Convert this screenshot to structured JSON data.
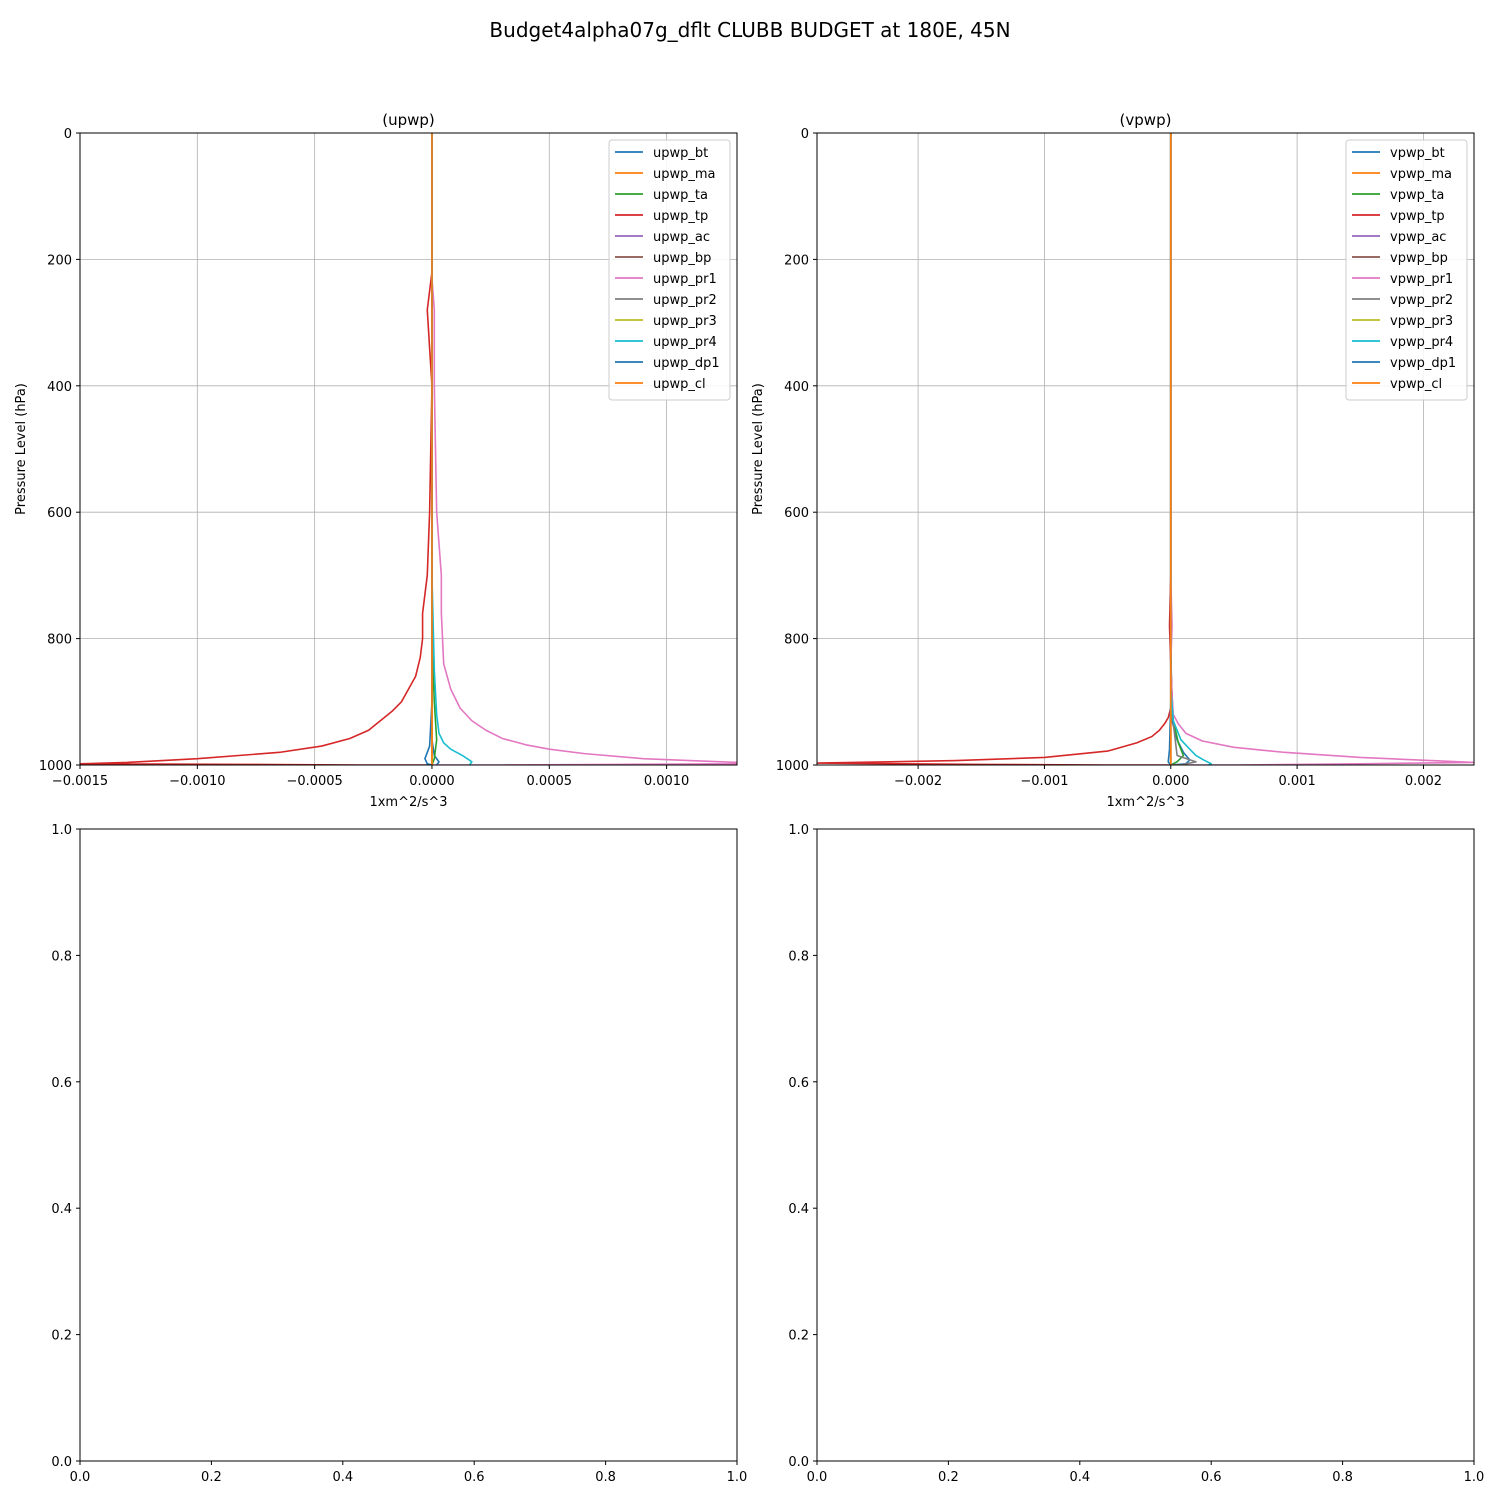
{
  "suptitle": "Budget4alpha07g_dflt CLUBB BUDGET at 180E, 45N",
  "chart_data": [
    {
      "type": "line",
      "title": "(upwp)",
      "xlabel": "1xm^2/s^3",
      "ylabel": "Pressure Level (hPa)",
      "xlim": [
        -0.0015,
        0.0013
      ],
      "ylim": [
        1000,
        0
      ],
      "grid": true,
      "legend": "top-right",
      "xticks": [
        -0.0015,
        -0.001,
        -0.0005,
        0,
        0.0005,
        0.001
      ],
      "xtick_labels": [
        "−0.0015",
        "−0.0010",
        "−0.0005",
        "0.0000",
        "0.0005",
        "0.0010"
      ],
      "yticks": [
        0,
        200,
        400,
        600,
        800,
        1000
      ],
      "ytick_labels": [
        "0",
        "200",
        "400",
        "600",
        "800",
        "1000"
      ],
      "series": [
        {
          "name": "upwp_bt",
          "color": "#1f77b4",
          "x": [
            0,
            0,
            0,
            0,
            1e-05,
            3e-05,
            2e-05
          ],
          "y": [
            0,
            700,
            900,
            960,
            985,
            995,
            1000
          ]
        },
        {
          "name": "upwp_ma",
          "color": "#ff7f0e",
          "x": [
            0,
            0,
            0,
            0
          ],
          "y": [
            0,
            800,
            990,
            1000
          ]
        },
        {
          "name": "upwp_ta",
          "color": "#2ca02c",
          "x": [
            0,
            0,
            1e-05,
            2e-05,
            1e-05,
            0
          ],
          "y": [
            0,
            800,
            900,
            960,
            990,
            1000
          ]
        },
        {
          "name": "upwp_tp",
          "color": "#d62728",
          "x": [
            0,
            0,
            -2e-05,
            0,
            -1e-05,
            -2e-05,
            -4e-05,
            -4e-05,
            -5e-05,
            -7e-05,
            -0.0001,
            -0.00013,
            -0.00017,
            -0.00022,
            -0.00027,
            -0.00035,
            -0.00047,
            -0.00065,
            -0.001,
            -0.0013,
            -0.0015,
            -0.0008,
            -0.0003,
            0
          ],
          "y": [
            0,
            220,
            280,
            400,
            600,
            700,
            760,
            800,
            830,
            860,
            880,
            900,
            915,
            930,
            945,
            958,
            970,
            980,
            990,
            996,
            998,
            999,
            1000,
            1000
          ]
        },
        {
          "name": "upwp_ac",
          "color": "#9467bd",
          "x": [
            0,
            0,
            0
          ],
          "y": [
            0,
            900,
            1000
          ]
        },
        {
          "name": "upwp_bp",
          "color": "#8c564b",
          "x": [
            0,
            0,
            0
          ],
          "y": [
            0,
            900,
            1000
          ]
        },
        {
          "name": "upwp_pr1",
          "color": "#e377c2",
          "x": [
            0,
            0,
            1e-05,
            1e-05,
            2e-05,
            4e-05,
            4e-05,
            5e-05,
            8e-05,
            0.00012,
            0.00017,
            0.00023,
            0.0003,
            0.0004,
            0.0005,
            0.00065,
            0.0009,
            0.0013,
            0.0013,
            0.0008,
            0.0003,
            0
          ],
          "y": [
            0,
            230,
            280,
            400,
            600,
            700,
            760,
            840,
            880,
            910,
            930,
            945,
            958,
            968,
            975,
            982,
            990,
            996,
            998,
            999,
            1000,
            1000
          ]
        },
        {
          "name": "upwp_pr2",
          "color": "#7f7f7f",
          "x": [
            0,
            0,
            0
          ],
          "y": [
            0,
            900,
            1000
          ]
        },
        {
          "name": "upwp_pr3",
          "color": "#bcbd22",
          "x": [
            0,
            0,
            0
          ],
          "y": [
            0,
            900,
            1000
          ]
        },
        {
          "name": "upwp_pr4",
          "color": "#17becf",
          "x": [
            0,
            0,
            1e-05,
            2e-05,
            3e-05,
            5e-05,
            8e-05,
            0.00013,
            0.00017,
            0.00016
          ],
          "y": [
            0,
            700,
            850,
            920,
            950,
            965,
            975,
            985,
            995,
            1000
          ]
        },
        {
          "name": "upwp_dp1",
          "color": "#1f77b4",
          "x": [
            0,
            0,
            -1e-05,
            -3e-05,
            -2e-05,
            0
          ],
          "y": [
            0,
            900,
            970,
            990,
            998,
            1000
          ]
        },
        {
          "name": "upwp_cl",
          "color": "#ff7f0e",
          "x": [
            0,
            0,
            0
          ],
          "y": [
            0,
            900,
            1000
          ]
        }
      ]
    },
    {
      "type": "line",
      "title": "(vpwp)",
      "xlabel": "1xm^2/s^3",
      "ylabel": "Pressure Level (hPa)",
      "xlim": [
        -0.0028,
        0.0024
      ],
      "ylim": [
        1000,
        0
      ],
      "grid": true,
      "legend": "top-right",
      "xticks": [
        -0.002,
        -0.001,
        0,
        0.001,
        0.002
      ],
      "xtick_labels": [
        "−0.002",
        "−0.001",
        "0.000",
        "0.001",
        "0.002"
      ],
      "yticks": [
        0,
        200,
        400,
        600,
        800,
        1000
      ],
      "ytick_labels": [
        "0",
        "200",
        "400",
        "600",
        "800",
        "1000"
      ],
      "series": [
        {
          "name": "vpwp_bt",
          "color": "#1f77b4",
          "x": [
            0,
            0,
            1e-05,
            5e-05,
            0.0001,
            0.00015,
            0.00012,
            0
          ],
          "y": [
            0,
            800,
            930,
            960,
            980,
            992,
            998,
            1000
          ]
        },
        {
          "name": "vpwp_ma",
          "color": "#ff7f0e",
          "x": [
            0,
            0,
            0
          ],
          "y": [
            0,
            900,
            1000
          ]
        },
        {
          "name": "vpwp_ta",
          "color": "#2ca02c",
          "x": [
            0,
            0,
            2e-05,
            6e-05,
            0.0001,
            5e-05,
            0
          ],
          "y": [
            0,
            850,
            930,
            965,
            985,
            995,
            1000
          ]
        },
        {
          "name": "vpwp_tp",
          "color": "#d62728",
          "x": [
            0,
            0,
            -1e-05,
            0,
            1e-05,
            0,
            -2e-05,
            -5e-05,
            -9e-05,
            -0.00015,
            -0.00027,
            -0.0005,
            -0.001,
            -0.0017,
            -0.0028,
            -0.0015,
            -0.0005,
            0
          ],
          "y": [
            0,
            700,
            780,
            840,
            890,
            910,
            925,
            935,
            945,
            955,
            965,
            978,
            988,
            993,
            997,
            999,
            1000,
            1000
          ]
        },
        {
          "name": "vpwp_ac",
          "color": "#9467bd",
          "x": [
            0,
            0,
            0
          ],
          "y": [
            0,
            900,
            1000
          ]
        },
        {
          "name": "vpwp_bp",
          "color": "#8c564b",
          "x": [
            0,
            0,
            0
          ],
          "y": [
            0,
            900,
            1000
          ]
        },
        {
          "name": "vpwp_pr1",
          "color": "#e377c2",
          "x": [
            0,
            0,
            1e-05,
            0,
            1e-05,
            2e-05,
            6e-05,
            0.00012,
            0.00025,
            0.0005,
            0.0009,
            0.0015,
            0.0024,
            0.0015,
            0.0005,
            0
          ],
          "y": [
            0,
            700,
            780,
            840,
            890,
            920,
            935,
            950,
            962,
            972,
            980,
            988,
            996,
            998,
            1000,
            1000
          ]
        },
        {
          "name": "vpwp_pr2",
          "color": "#7f7f7f",
          "x": [
            0,
            0,
            5e-05,
            0.0002,
            0.0001,
            0
          ],
          "y": [
            0,
            900,
            985,
            995,
            999,
            1000
          ]
        },
        {
          "name": "vpwp_pr3",
          "color": "#bcbd22",
          "x": [
            0,
            0,
            0
          ],
          "y": [
            0,
            900,
            1000
          ]
        },
        {
          "name": "vpwp_pr4",
          "color": "#17becf",
          "x": [
            0,
            0,
            2e-05,
            8e-05,
            0.00015,
            0.0002,
            0.00026,
            0.00032,
            0.0003
          ],
          "y": [
            0,
            880,
            930,
            960,
            975,
            985,
            992,
            998,
            1000
          ]
        },
        {
          "name": "vpwp_dp1",
          "color": "#1f77b4",
          "x": [
            0,
            0,
            -1e-05,
            -2e-05,
            0
          ],
          "y": [
            0,
            900,
            975,
            995,
            1000
          ]
        },
        {
          "name": "vpwp_cl",
          "color": "#ff7f0e",
          "x": [
            0,
            0,
            0
          ],
          "y": [
            0,
            900,
            1000
          ]
        }
      ]
    },
    {
      "type": "line",
      "title": "",
      "xlim": [
        0,
        1
      ],
      "ylim": [
        0,
        1
      ],
      "grid": false,
      "xticks": [
        0,
        0.2,
        0.4,
        0.6,
        0.8,
        1
      ],
      "xtick_labels": [
        "0.0",
        "0.2",
        "0.4",
        "0.6",
        "0.8",
        "1.0"
      ],
      "yticks": [
        0,
        0.2,
        0.4,
        0.6,
        0.8,
        1
      ],
      "ytick_labels": [
        "0.0",
        "0.2",
        "0.4",
        "0.6",
        "0.8",
        "1.0"
      ],
      "series": []
    },
    {
      "type": "line",
      "title": "",
      "xlim": [
        0,
        1
      ],
      "ylim": [
        0,
        1
      ],
      "grid": false,
      "xticks": [
        0,
        0.2,
        0.4,
        0.6,
        0.8,
        1
      ],
      "xtick_labels": [
        "0.0",
        "0.2",
        "0.4",
        "0.6",
        "0.8",
        "1.0"
      ],
      "yticks": [
        0,
        0.2,
        0.4,
        0.6,
        0.8,
        1
      ],
      "ytick_labels": [
        "0.0",
        "0.2",
        "0.4",
        "0.6",
        "0.8",
        "1.0"
      ],
      "series": []
    }
  ]
}
